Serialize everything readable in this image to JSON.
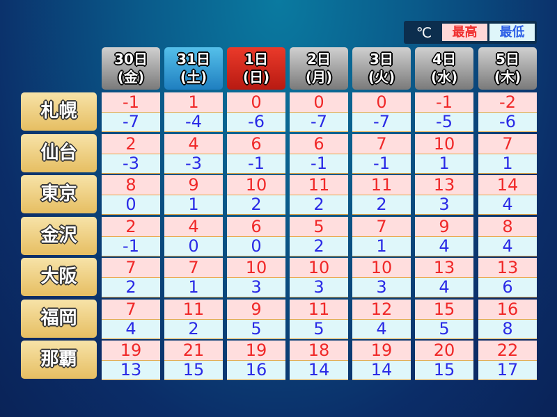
{
  "legend": {
    "unit": "℃",
    "high": "最高",
    "low": "最低",
    "high_color": "#f02828",
    "low_color": "#2a2ae6"
  },
  "days": [
    {
      "date": "30日",
      "weekday": "(金)",
      "style": "normal"
    },
    {
      "date": "31日",
      "weekday": "(土)",
      "style": "saturday"
    },
    {
      "date": "1日",
      "weekday": "(日)",
      "style": "sunday"
    },
    {
      "date": "2日",
      "weekday": "(月)",
      "style": "normal"
    },
    {
      "date": "3日",
      "weekday": "(火)",
      "style": "normal"
    },
    {
      "date": "4日",
      "weekday": "(水)",
      "style": "normal"
    },
    {
      "date": "5日",
      "weekday": "(木)",
      "style": "normal"
    }
  ],
  "cities": [
    {
      "name": "札幌",
      "high": [
        "-1",
        "1",
        "0",
        "0",
        "0",
        "-1",
        "-2"
      ],
      "low": [
        "-7",
        "-4",
        "-6",
        "-7",
        "-7",
        "-5",
        "-6"
      ]
    },
    {
      "name": "仙台",
      "high": [
        "2",
        "4",
        "6",
        "6",
        "7",
        "10",
        "7"
      ],
      "low": [
        "-3",
        "-3",
        "-1",
        "-1",
        "-1",
        "1",
        "1"
      ]
    },
    {
      "name": "東京",
      "high": [
        "8",
        "9",
        "10",
        "11",
        "11",
        "13",
        "14"
      ],
      "low": [
        "0",
        "1",
        "2",
        "2",
        "2",
        "3",
        "4"
      ]
    },
    {
      "name": "金沢",
      "high": [
        "2",
        "4",
        "6",
        "5",
        "7",
        "9",
        "8"
      ],
      "low": [
        "-1",
        "0",
        "0",
        "2",
        "1",
        "4",
        "4"
      ]
    },
    {
      "name": "大阪",
      "high": [
        "7",
        "7",
        "10",
        "10",
        "10",
        "13",
        "13"
      ],
      "low": [
        "2",
        "1",
        "3",
        "3",
        "3",
        "4",
        "6"
      ]
    },
    {
      "name": "福岡",
      "high": [
        "7",
        "11",
        "9",
        "11",
        "12",
        "15",
        "16"
      ],
      "low": [
        "4",
        "2",
        "5",
        "5",
        "4",
        "5",
        "8"
      ]
    },
    {
      "name": "那覇",
      "high": [
        "19",
        "21",
        "19",
        "18",
        "19",
        "20",
        "22"
      ],
      "low": [
        "13",
        "15",
        "16",
        "14",
        "14",
        "15",
        "17"
      ]
    }
  ]
}
